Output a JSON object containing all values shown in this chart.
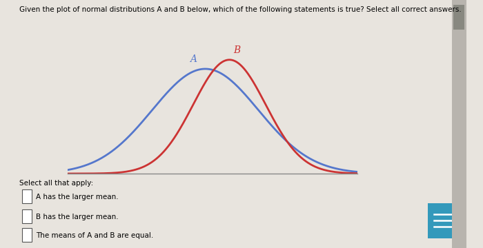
{
  "title_text": "Given the plot of normal distributions A and B below, which of the following statements is true? Select all correct answers.",
  "curve_A": {
    "mean": -0.3,
    "std": 2.2,
    "color": "#5577cc",
    "label": "A",
    "linewidth": 2.0,
    "scale": 1.0
  },
  "curve_B": {
    "mean": 0.7,
    "std": 1.5,
    "color": "#cc3333",
    "label": "B",
    "linewidth": 2.0,
    "scale": 1.0
  },
  "x_range": [
    -6.0,
    6.0
  ],
  "background_color": "#e8e4de",
  "plot_bg_color": "#e8e4de",
  "select_text": "Select all that apply:",
  "options": [
    "A has the larger mean.",
    "B has the larger mean.",
    "The means of A and B are equal."
  ],
  "title_fontsize": 7.5,
  "option_fontsize": 7.5,
  "select_fontsize": 7.5,
  "btn_color": "#3399bb"
}
